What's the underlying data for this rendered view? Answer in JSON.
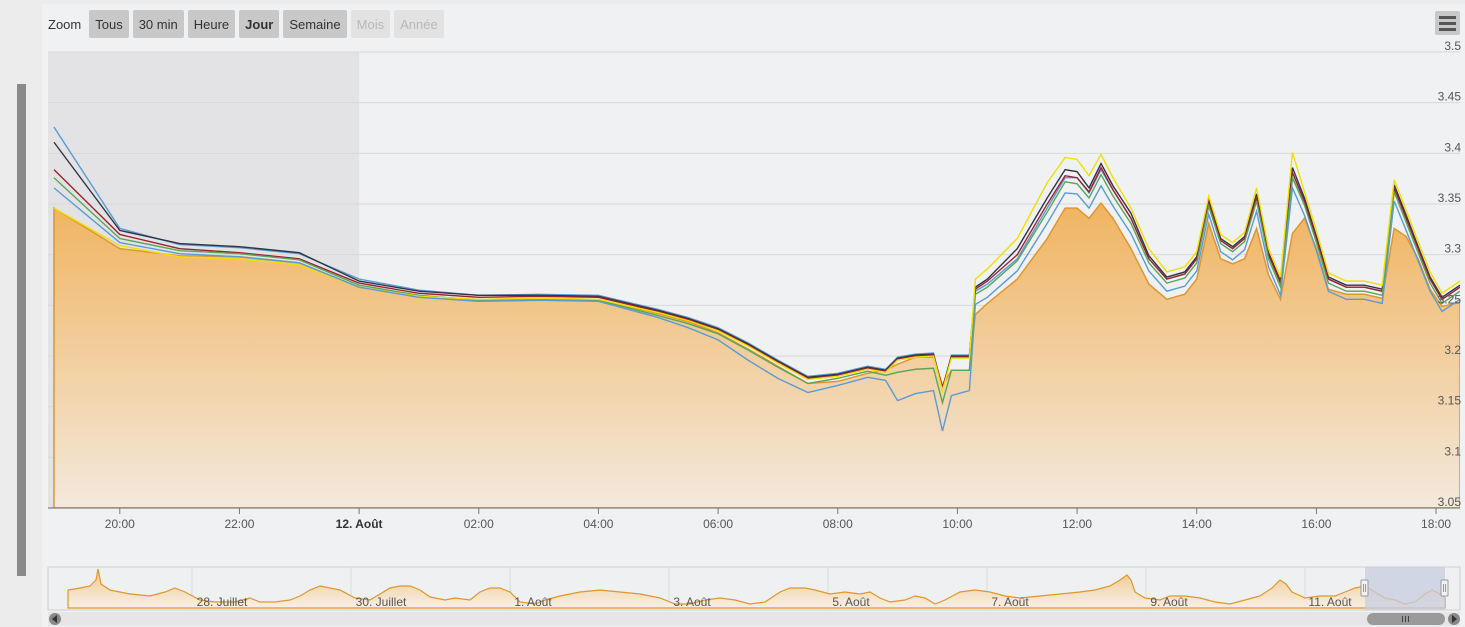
{
  "zoom": {
    "label": "Zoom",
    "buttons": [
      {
        "label": "Tous",
        "state": "normal"
      },
      {
        "label": "30 min",
        "state": "normal"
      },
      {
        "label": "Heure",
        "state": "normal"
      },
      {
        "label": "Jour",
        "state": "active"
      },
      {
        "label": "Semaine",
        "state": "normal"
      },
      {
        "label": "Mois",
        "state": "disabled"
      },
      {
        "label": "Année",
        "state": "disabled"
      }
    ]
  },
  "menu": {
    "icon": "hamburger-menu-icon"
  },
  "colors": {
    "area_top": "#f0b460",
    "area_bottom": "#f3e9dc",
    "area_line": "#e0962c",
    "series_blue": "#5b9bd5",
    "series_red": "#9b2230",
    "series_dark": "#333344",
    "series_green": "#5aa55a",
    "series_yellow": "#f0e000",
    "gridline": "#d8d8d8",
    "shade": "#e3e3e5",
    "navigator_fill": "#f1c98c",
    "navigator_line": "#e0962c",
    "navigator_mask": "#c7cde0"
  },
  "chart_data": {
    "type": "area",
    "ylim": [
      3.05,
      3.5
    ],
    "yticks": [
      "3.05",
      "3.1",
      "3.15",
      "3.2",
      "3.25",
      "3.3",
      "3.35",
      "3.4",
      "3.45",
      "3.5"
    ],
    "xlim": [
      18.8,
      42.4
    ],
    "xticks": [
      {
        "x": 20,
        "label": "20:00",
        "bold": false
      },
      {
        "x": 22,
        "label": "22:00",
        "bold": false
      },
      {
        "x": 24,
        "label": "12. Août",
        "bold": true
      },
      {
        "x": 26,
        "label": "02:00",
        "bold": false
      },
      {
        "x": 28,
        "label": "04:00",
        "bold": false
      },
      {
        "x": 30,
        "label": "06:00",
        "bold": false
      },
      {
        "x": 32,
        "label": "08:00",
        "bold": false
      },
      {
        "x": 34,
        "label": "10:00",
        "bold": false
      },
      {
        "x": 36,
        "label": "12:00",
        "bold": false
      },
      {
        "x": 38,
        "label": "14:00",
        "bold": false
      },
      {
        "x": 40,
        "label": "16:00",
        "bold": false
      },
      {
        "x": 42,
        "label": "18:00",
        "bold": false
      }
    ],
    "shaded_range": [
      18.8,
      24.0
    ],
    "grid": true,
    "area": {
      "x": [
        18.9,
        20.0,
        21.0,
        22.0,
        23.0,
        24.0,
        25.0,
        26.0,
        27.0,
        28.0,
        29.0,
        29.5,
        30.0,
        30.5,
        31.0,
        31.5,
        32.0,
        32.5,
        32.8,
        33.0,
        33.3,
        33.6,
        33.75,
        33.9,
        34.2,
        34.3,
        34.5,
        35.0,
        35.5,
        35.8,
        36.0,
        36.2,
        36.4,
        36.6,
        36.9,
        37.2,
        37.5,
        37.8,
        38.0,
        38.2,
        38.4,
        38.6,
        38.8,
        39.0,
        39.2,
        39.4,
        39.6,
        39.8,
        40.0,
        40.2,
        40.5,
        40.8,
        41.1,
        41.3,
        41.5,
        41.7,
        41.9,
        42.1,
        42.4
      ],
      "y": [
        3.34,
        3.3,
        3.293,
        3.292,
        3.286,
        3.262,
        3.253,
        3.25,
        3.251,
        3.25,
        3.236,
        3.228,
        3.217,
        3.201,
        3.184,
        3.167,
        3.169,
        3.177,
        3.18,
        3.186,
        3.193,
        3.193,
        3.165,
        3.18,
        3.18,
        3.235,
        3.246,
        3.27,
        3.31,
        3.34,
        3.34,
        3.33,
        3.345,
        3.33,
        3.3,
        3.265,
        3.25,
        3.255,
        3.27,
        3.325,
        3.29,
        3.285,
        3.29,
        3.32,
        3.274,
        3.25,
        3.315,
        3.33,
        3.3,
        3.26,
        3.255,
        3.255,
        3.251,
        3.32,
        3.312,
        3.29,
        3.26,
        3.243,
        3.247
      ]
    },
    "series": [
      {
        "color": "#5b9bd5",
        "y": [
          3.42,
          3.32,
          3.304,
          3.301,
          3.295,
          3.27,
          3.259,
          3.254,
          3.255,
          3.254,
          3.24,
          3.232,
          3.222,
          3.207,
          3.19,
          3.174,
          3.177,
          3.184,
          3.181,
          3.193,
          3.196,
          3.197,
          3.161,
          3.195,
          3.195,
          3.258,
          3.265,
          3.29,
          3.34,
          3.37,
          3.37,
          3.355,
          3.378,
          3.358,
          3.33,
          3.29,
          3.27,
          3.275,
          3.29,
          3.345,
          3.308,
          3.3,
          3.31,
          3.35,
          3.294,
          3.267,
          3.37,
          3.345,
          3.31,
          3.27,
          3.262,
          3.262,
          3.258,
          3.36,
          3.33,
          3.3,
          3.27,
          3.25,
          3.262
        ]
      },
      {
        "color": "#333344",
        "y": [
          3.405,
          3.318,
          3.305,
          3.302,
          3.296,
          3.268,
          3.258,
          3.254,
          3.254,
          3.253,
          3.239,
          3.231,
          3.221,
          3.206,
          3.189,
          3.173,
          3.176,
          3.183,
          3.18,
          3.192,
          3.195,
          3.196,
          3.162,
          3.194,
          3.194,
          3.262,
          3.27,
          3.3,
          3.35,
          3.378,
          3.376,
          3.36,
          3.384,
          3.362,
          3.335,
          3.293,
          3.272,
          3.277,
          3.292,
          3.348,
          3.31,
          3.302,
          3.312,
          3.354,
          3.296,
          3.268,
          3.38,
          3.35,
          3.312,
          3.272,
          3.264,
          3.264,
          3.26,
          3.363,
          3.333,
          3.302,
          3.272,
          3.252,
          3.264
        ]
      },
      {
        "color": "#9b2230",
        "y": [
          3.378,
          3.314,
          3.3,
          3.296,
          3.29,
          3.266,
          3.256,
          3.252,
          3.253,
          3.252,
          3.238,
          3.23,
          3.22,
          3.205,
          3.188,
          3.172,
          3.175,
          3.182,
          3.179,
          3.191,
          3.194,
          3.195,
          3.163,
          3.193,
          3.193,
          3.26,
          3.268,
          3.294,
          3.344,
          3.372,
          3.37,
          3.356,
          3.38,
          3.358,
          3.33,
          3.29,
          3.27,
          3.275,
          3.29,
          3.346,
          3.308,
          3.3,
          3.31,
          3.351,
          3.294,
          3.266,
          3.375,
          3.347,
          3.31,
          3.27,
          3.262,
          3.262,
          3.258,
          3.36,
          3.33,
          3.3,
          3.27,
          3.25,
          3.262
        ]
      },
      {
        "color": "#5aa55a",
        "y": [
          3.37,
          3.31,
          3.298,
          3.295,
          3.289,
          3.264,
          3.254,
          3.249,
          3.25,
          3.249,
          3.234,
          3.226,
          3.216,
          3.2,
          3.183,
          3.167,
          3.172,
          3.179,
          3.175,
          3.178,
          3.181,
          3.182,
          3.148,
          3.18,
          3.18,
          3.255,
          3.262,
          3.288,
          3.336,
          3.366,
          3.364,
          3.35,
          3.373,
          3.352,
          3.325,
          3.286,
          3.266,
          3.271,
          3.286,
          3.342,
          3.305,
          3.297,
          3.307,
          3.347,
          3.29,
          3.262,
          3.37,
          3.343,
          3.306,
          3.266,
          3.258,
          3.258,
          3.254,
          3.356,
          3.326,
          3.296,
          3.266,
          3.246,
          3.258
        ]
      },
      {
        "color": "#f0e000",
        "y": [
          3.34,
          3.303,
          3.292,
          3.29,
          3.284,
          3.262,
          3.253,
          3.25,
          3.251,
          3.25,
          3.237,
          3.229,
          3.219,
          3.204,
          3.187,
          3.171,
          3.174,
          3.181,
          3.178,
          3.19,
          3.193,
          3.194,
          3.16,
          3.192,
          3.192,
          3.27,
          3.28,
          3.31,
          3.365,
          3.39,
          3.388,
          3.372,
          3.393,
          3.37,
          3.34,
          3.3,
          3.277,
          3.282,
          3.297,
          3.352,
          3.314,
          3.306,
          3.316,
          3.36,
          3.3,
          3.272,
          3.395,
          3.356,
          3.318,
          3.276,
          3.268,
          3.268,
          3.264,
          3.368,
          3.338,
          3.307,
          3.277,
          3.256,
          3.268
        ]
      },
      {
        "color": "#5b9bd5",
        "y": [
          3.36,
          3.306,
          3.295,
          3.292,
          3.286,
          3.262,
          3.252,
          3.248,
          3.249,
          3.248,
          3.232,
          3.222,
          3.21,
          3.19,
          3.172,
          3.158,
          3.165,
          3.173,
          3.17,
          3.15,
          3.157,
          3.16,
          3.12,
          3.155,
          3.16,
          3.245,
          3.252,
          3.278,
          3.325,
          3.355,
          3.354,
          3.34,
          3.362,
          3.342,
          3.315,
          3.278,
          3.258,
          3.263,
          3.278,
          3.334,
          3.297,
          3.289,
          3.299,
          3.337,
          3.282,
          3.254,
          3.36,
          3.333,
          3.298,
          3.258,
          3.25,
          3.25,
          3.246,
          3.347,
          3.318,
          3.288,
          3.258,
          3.238,
          3.25
        ]
      }
    ]
  },
  "navigator": {
    "labels": [
      "28. Juillet",
      "30. Juillet",
      "1. Août",
      "3. Août",
      "5. Août",
      "7. Août",
      "9. Août",
      "11. Août"
    ]
  }
}
